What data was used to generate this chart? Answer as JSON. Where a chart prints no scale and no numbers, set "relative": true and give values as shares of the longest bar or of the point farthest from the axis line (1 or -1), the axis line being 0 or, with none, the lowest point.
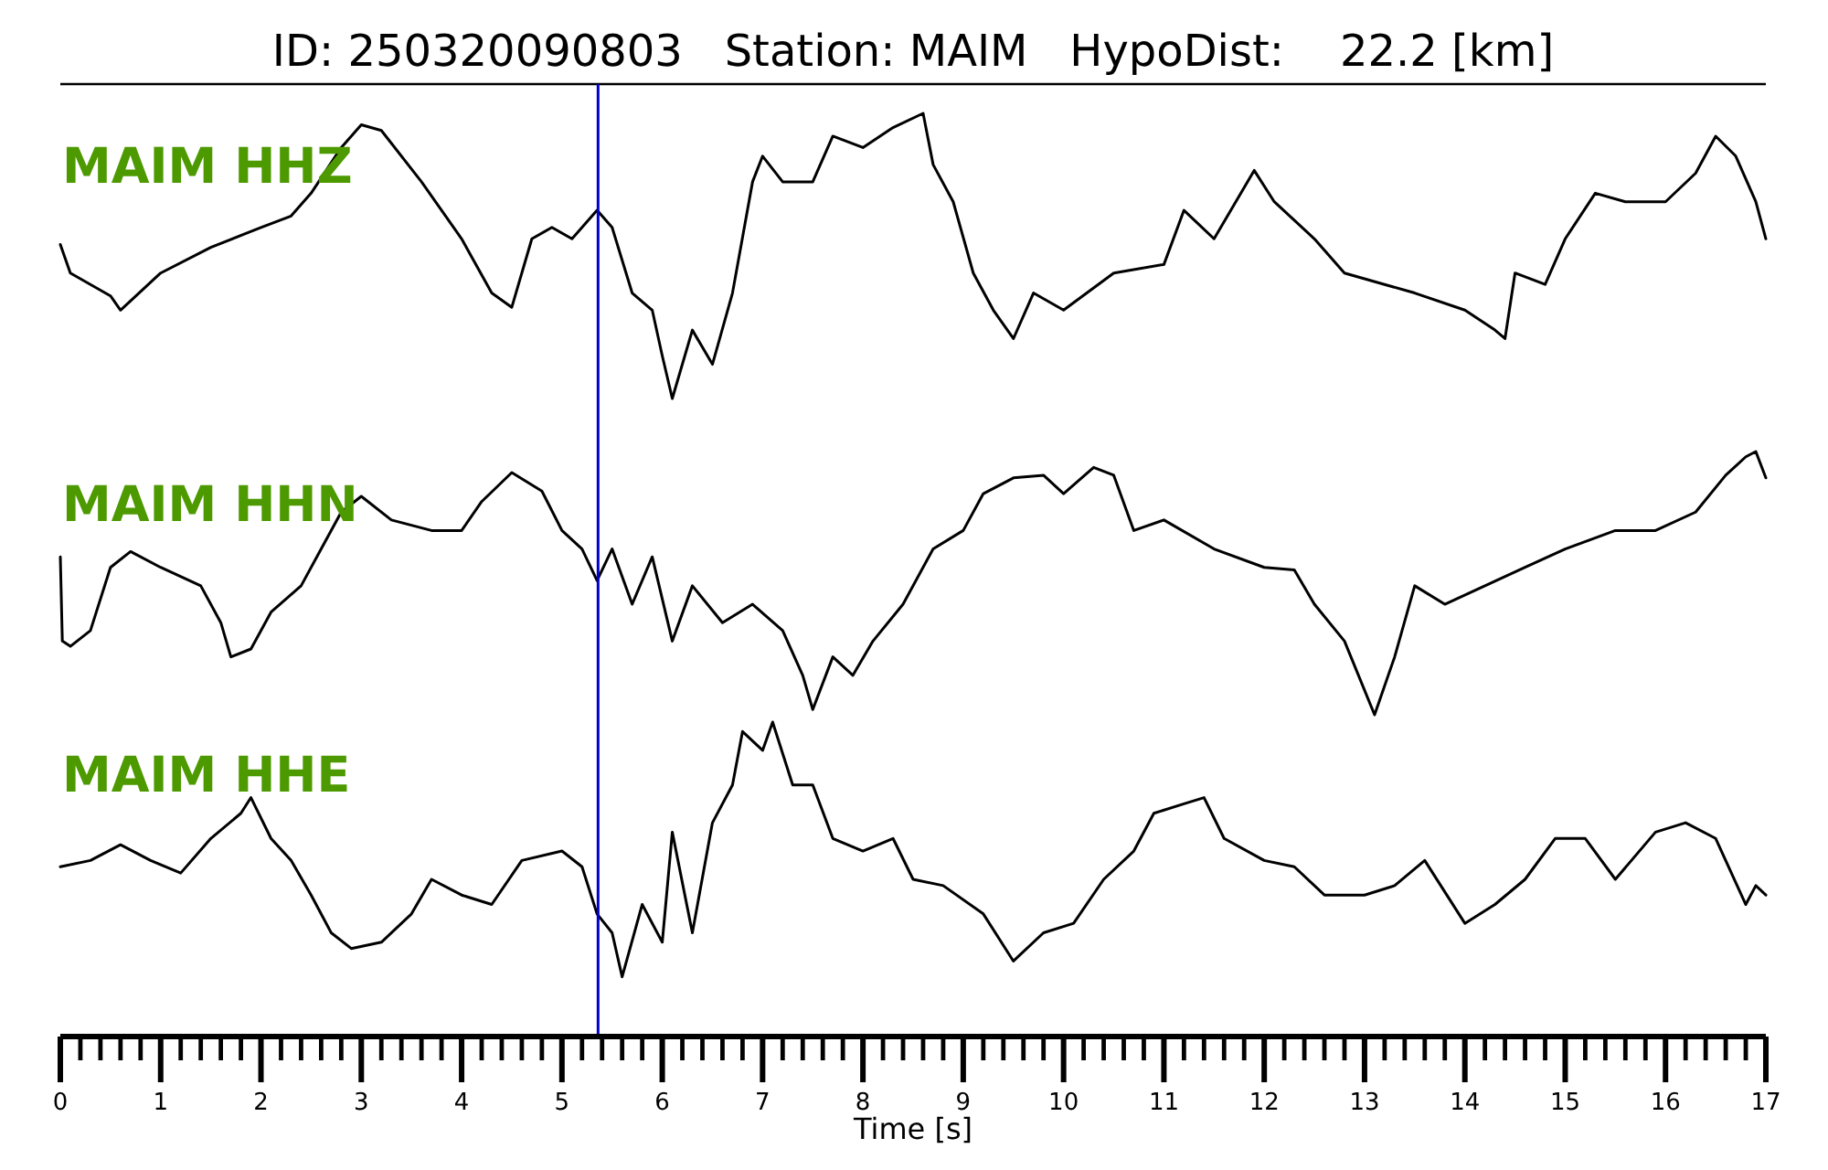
{
  "chart_data": [
    {
      "type": "line",
      "title": "ID: 250320090803   Station: MAIM   HypoDist:    22.2 [km]",
      "annotations": [
        "MAIM HHZ"
      ],
      "relative": true,
      "xlim": [
        0,
        17
      ],
      "tick_labels": false,
      "ref_lines": [
        {
          "axis": "x",
          "value": 5.36,
          "color": "#0000cc"
        }
      ],
      "series": [
        {
          "color": "#000000",
          "x": [
            0,
            0.1,
            0.5,
            0.6,
            1.0,
            1.5,
            2.0,
            2.3,
            2.5,
            2.8,
            3.0,
            3.2,
            3.6,
            4.0,
            4.3,
            4.5,
            4.7,
            4.9,
            5.1,
            5.35,
            5.5,
            5.7,
            5.9,
            6.0,
            6.1,
            6.3,
            6.5,
            6.7,
            6.9,
            7.0,
            7.2,
            7.5,
            7.7,
            8.0,
            8.3,
            8.6,
            8.7,
            8.9,
            9.1,
            9.3,
            9.5,
            9.7,
            10.0,
            10.5,
            11.0,
            11.2,
            11.5,
            11.9,
            12.1,
            12.5,
            12.8,
            13.2,
            13.5,
            14.0,
            14.3,
            14.4,
            14.5,
            14.8,
            15.0,
            15.3,
            15.6,
            16.0,
            16.3,
            16.5,
            16.7,
            16.9,
            17.0
          ],
          "values": [
            0.54,
            0.44,
            0.36,
            0.31,
            0.44,
            0.53,
            0.6,
            0.64,
            0.72,
            0.88,
            0.96,
            0.94,
            0.76,
            0.56,
            0.37,
            0.32,
            0.56,
            0.6,
            0.56,
            0.66,
            0.6,
            0.37,
            0.31,
            0.15,
            0,
            0.24,
            0.12,
            0.37,
            0.76,
            0.85,
            0.76,
            0.76,
            0.92,
            0.88,
            0.95,
            1,
            0.82,
            0.69,
            0.44,
            0.31,
            0.21,
            0.37,
            0.31,
            0.44,
            0.47,
            0.66,
            0.56,
            0.8,
            0.69,
            0.56,
            0.44,
            0.4,
            0.37,
            0.31,
            0.24,
            0.21,
            0.44,
            0.4,
            0.56,
            0.72,
            0.69,
            0.69,
            0.79,
            0.92,
            0.85,
            0.69,
            0.56
          ]
        }
      ]
    },
    {
      "type": "line",
      "annotations": [
        "MAIM HHN"
      ],
      "relative": true,
      "xlim": [
        0,
        17
      ],
      "tick_labels": false,
      "ref_lines": [
        {
          "axis": "x",
          "value": 5.36,
          "color": "#0000cc"
        }
      ],
      "series": [
        {
          "color": "#000000",
          "x": [
            0,
            0.02,
            0.1,
            0.3,
            0.5,
            0.7,
            1.0,
            1.4,
            1.6,
            1.7,
            1.9,
            2.1,
            2.4,
            2.6,
            2.8,
            3.0,
            3.3,
            3.7,
            4.0,
            4.2,
            4.5,
            4.8,
            5.0,
            5.2,
            5.35,
            5.5,
            5.7,
            5.9,
            6.1,
            6.3,
            6.6,
            6.9,
            7.2,
            7.4,
            7.5,
            7.7,
            7.9,
            8.1,
            8.4,
            8.7,
            9.0,
            9.2,
            9.5,
            9.8,
            10.0,
            10.3,
            10.5,
            10.7,
            11.0,
            11.5,
            12.0,
            12.3,
            12.5,
            12.8,
            13.1,
            13.3,
            13.5,
            13.8,
            14.2,
            14.6,
            15.0,
            15.5,
            15.9,
            16.3,
            16.6,
            16.8,
            16.9,
            17.0
          ],
          "values": [
            0.6,
            0.28,
            0.26,
            0.32,
            0.56,
            0.62,
            0.56,
            0.49,
            0.35,
            0.22,
            0.25,
            0.39,
            0.49,
            0.63,
            0.77,
            0.83,
            0.74,
            0.7,
            0.7,
            0.81,
            0.92,
            0.85,
            0.7,
            0.63,
            0.51,
            0.63,
            0.42,
            0.6,
            0.28,
            0.49,
            0.35,
            0.42,
            0.32,
            0.15,
            0.02,
            0.22,
            0.15,
            0.28,
            0.42,
            0.63,
            0.7,
            0.84,
            0.9,
            0.91,
            0.84,
            0.94,
            0.91,
            0.7,
            0.74,
            0.63,
            0.56,
            0.55,
            0.42,
            0.28,
            0,
            0.22,
            0.49,
            0.42,
            0.49,
            0.56,
            0.63,
            0.7,
            0.7,
            0.77,
            0.91,
            0.98,
            1,
            0.9
          ]
        }
      ]
    },
    {
      "type": "line",
      "xlabel": "Time [s]",
      "annotations": [
        "MAIM HHE"
      ],
      "relative": true,
      "xlim": [
        0,
        17
      ],
      "tick_labels": "x",
      "ref_lines": [
        {
          "axis": "x",
          "value": 5.36,
          "color": "#0000cc"
        }
      ],
      "xticks": [
        0,
        {
          "value": 0.2,
          "label": null
        },
        {
          "value": 0.4,
          "label": null
        },
        {
          "value": 0.6,
          "label": null
        },
        {
          "value": 0.8,
          "label": null
        },
        1,
        {
          "value": 1.2,
          "label": null
        },
        {
          "value": 1.4,
          "label": null
        },
        {
          "value": 1.6,
          "label": null
        },
        {
          "value": 1.8,
          "label": null
        },
        2,
        {
          "value": 2.2,
          "label": null
        },
        {
          "value": 2.4,
          "label": null
        },
        {
          "value": 2.6,
          "label": null
        },
        {
          "value": 2.8,
          "label": null
        },
        3,
        {
          "value": 3.2,
          "label": null
        },
        {
          "value": 3.4,
          "label": null
        },
        {
          "value": 3.6,
          "label": null
        },
        {
          "value": 3.8,
          "label": null
        },
        4,
        {
          "value": 4.2,
          "label": null
        },
        {
          "value": 4.4,
          "label": null
        },
        {
          "value": 4.6,
          "label": null
        },
        {
          "value": 4.8,
          "label": null
        },
        5,
        {
          "value": 5.2,
          "label": null
        },
        {
          "value": 5.4,
          "label": null
        },
        {
          "value": 5.6,
          "label": null
        },
        {
          "value": 5.8,
          "label": null
        },
        6,
        {
          "value": 6.2,
          "label": null
        },
        {
          "value": 6.4,
          "label": null
        },
        {
          "value": 6.6,
          "label": null
        },
        {
          "value": 6.8,
          "label": null
        },
        7,
        {
          "value": 7.2,
          "label": null
        },
        {
          "value": 7.4,
          "label": null
        },
        {
          "value": 7.6,
          "label": null
        },
        {
          "value": 7.8,
          "label": null
        },
        8,
        {
          "value": 8.2,
          "label": null
        },
        {
          "value": 8.4,
          "label": null
        },
        {
          "value": 8.6,
          "label": null
        },
        {
          "value": 8.8,
          "label": null
        },
        9,
        {
          "value": 9.2,
          "label": null
        },
        {
          "value": 9.4,
          "label": null
        },
        {
          "value": 9.6,
          "label": null
        },
        {
          "value": 9.8,
          "label": null
        },
        10,
        {
          "value": 10.2,
          "label": null
        },
        {
          "value": 10.4,
          "label": null
        },
        {
          "value": 10.6,
          "label": null
        },
        {
          "value": 10.8,
          "label": null
        },
        11,
        {
          "value": 11.2,
          "label": null
        },
        {
          "value": 11.4,
          "label": null
        },
        {
          "value": 11.6,
          "label": null
        },
        {
          "value": 11.8,
          "label": null
        },
        12,
        {
          "value": 12.2,
          "label": null
        },
        {
          "value": 12.4,
          "label": null
        },
        {
          "value": 12.6,
          "label": null
        },
        {
          "value": 12.8,
          "label": null
        },
        13,
        {
          "value": 13.2,
          "label": null
        },
        {
          "value": 13.4,
          "label": null
        },
        {
          "value": 13.6,
          "label": null
        },
        {
          "value": 13.8,
          "label": null
        },
        14,
        {
          "value": 14.2,
          "label": null
        },
        {
          "value": 14.4,
          "label": null
        },
        {
          "value": 14.6,
          "label": null
        },
        {
          "value": 14.8,
          "label": null
        },
        15,
        {
          "value": 15.2,
          "label": null
        },
        {
          "value": 15.4,
          "label": null
        },
        {
          "value": 15.6,
          "label": null
        },
        {
          "value": 15.8,
          "label": null
        },
        16,
        {
          "value": 16.2,
          "label": null
        },
        {
          "value": 16.4,
          "label": null
        },
        {
          "value": 16.6,
          "label": null
        },
        {
          "value": 16.8,
          "label": null
        },
        17
      ],
      "series": [
        {
          "color": "#000000",
          "x": [
            0,
            0.3,
            0.6,
            0.9,
            1.2,
            1.5,
            1.8,
            1.9,
            2.1,
            2.3,
            2.5,
            2.7,
            2.9,
            3.2,
            3.5,
            3.7,
            4.0,
            4.3,
            4.6,
            5.0,
            5.2,
            5.35,
            5.5,
            5.6,
            5.8,
            6.0,
            6.1,
            6.3,
            6.5,
            6.7,
            6.8,
            7.0,
            7.1,
            7.3,
            7.5,
            7.7,
            8.0,
            8.3,
            8.5,
            8.8,
            9.2,
            9.5,
            9.8,
            10.1,
            10.4,
            10.7,
            10.9,
            11.2,
            11.4,
            11.6,
            12.0,
            12.3,
            12.6,
            13.0,
            13.3,
            13.6,
            14.0,
            14.3,
            14.6,
            14.9,
            15.2,
            15.5,
            15.9,
            16.2,
            16.5,
            16.8,
            16.9,
            17.0
          ],
          "values": [
            0.54,
            0.56,
            0.61,
            0.56,
            0.52,
            0.63,
            0.71,
            0.76,
            0.63,
            0.56,
            0.45,
            0.33,
            0.28,
            0.3,
            0.39,
            0.5,
            0.45,
            0.42,
            0.56,
            0.59,
            0.54,
            0.39,
            0.33,
            0.19,
            0.42,
            0.3,
            0.65,
            0.33,
            0.68,
            0.8,
            0.97,
            0.91,
            1,
            0.8,
            0.8,
            0.63,
            0.59,
            0.63,
            0.5,
            0.48,
            0.39,
            0.24,
            0.33,
            0.36,
            0.5,
            0.59,
            0.71,
            0.74,
            0.76,
            0.63,
            0.56,
            0.54,
            0.45,
            0.45,
            0.48,
            0.56,
            0.36,
            0.42,
            0.5,
            0.63,
            0.63,
            0.5,
            0.65,
            0.68,
            0.63,
            0.42,
            0.48,
            0.45
          ]
        }
      ]
    }
  ]
}
